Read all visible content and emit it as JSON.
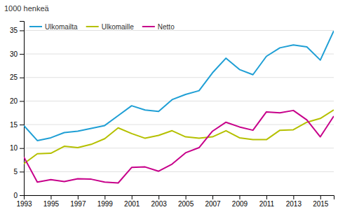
{
  "chart_data": {
    "type": "line",
    "ylabel": "1000 henkeä",
    "x": [
      1993,
      1994,
      1995,
      1996,
      1997,
      1998,
      1999,
      2000,
      2001,
      2002,
      2003,
      2004,
      2005,
      2006,
      2007,
      2008,
      2009,
      2010,
      2011,
      2012,
      2013,
      2014,
      2015,
      2016
    ],
    "series": [
      {
        "name": "Ulkomailta",
        "color": "#1f9fd5",
        "values": [
          14.8,
          11.6,
          12.2,
          13.3,
          13.6,
          14.2,
          14.8,
          16.9,
          19.0,
          18.1,
          17.8,
          20.3,
          21.4,
          22.2,
          26.0,
          29.1,
          26.7,
          25.6,
          29.5,
          31.3,
          31.9,
          31.5,
          28.7,
          34.9
        ]
      },
      {
        "name": "Ulkomaille",
        "color": "#b5c000",
        "values": [
          6.7,
          8.8,
          8.9,
          10.4,
          10.1,
          10.8,
          12.0,
          14.3,
          13.1,
          12.1,
          12.7,
          13.7,
          12.4,
          12.1,
          12.4,
          13.7,
          12.2,
          11.8,
          11.8,
          13.8,
          13.9,
          15.5,
          16.3,
          18.1
        ]
      },
      {
        "name": "Netto",
        "color": "#c7008a",
        "values": [
          8.1,
          2.8,
          3.3,
          2.9,
          3.5,
          3.4,
          2.8,
          2.6,
          5.9,
          6.0,
          5.1,
          6.6,
          9.0,
          10.1,
          13.6,
          15.5,
          14.5,
          13.8,
          17.7,
          17.5,
          18.0,
          16.0,
          12.4,
          16.8
        ]
      }
    ],
    "xlim": [
      1993,
      2016
    ],
    "xticks": [
      1993,
      1995,
      1997,
      1999,
      2001,
      2003,
      2005,
      2007,
      2009,
      2011,
      2013,
      2015
    ],
    "ylim": [
      0,
      37
    ],
    "yticks": [
      0,
      5,
      10,
      15,
      20,
      25,
      30,
      35
    ],
    "grid": true,
    "legend": "upper left"
  }
}
